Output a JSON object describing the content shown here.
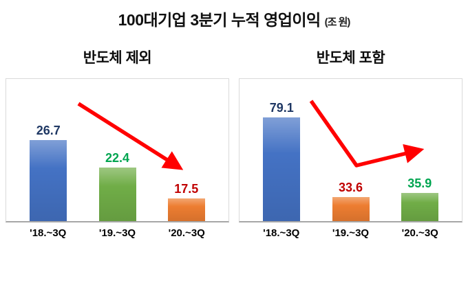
{
  "title": {
    "main": "100대기업 3분기 누적 영업이익",
    "unit": "(조 원)"
  },
  "colors": {
    "arrow": "#FF0000",
    "axis_line": "#A6A6A6",
    "plot_border": "#D9D9D9"
  },
  "chart_data": [
    {
      "type": "bar",
      "title": "반도체 제외",
      "categories": [
        "'18.~3Q",
        "'19.~3Q",
        "'20.~3Q"
      ],
      "values": [
        26.7,
        22.4,
        17.5
      ],
      "ylim": [
        14,
        36
      ],
      "bar_colors": [
        "#4472C4",
        "#70AD47",
        "#ED7D31"
      ],
      "label_colors": [
        "#1F3864",
        "#00A550",
        "#C00000"
      ],
      "legend": "none",
      "grid": false,
      "trend_arrow": "down"
    },
    {
      "type": "bar",
      "title": "반도체 포함",
      "categories": [
        "'18.~3Q",
        "'19.~3Q",
        "'20.~3Q"
      ],
      "values": [
        79.1,
        33.6,
        35.9
      ],
      "ylim": [
        20,
        100
      ],
      "bar_colors": [
        "#4472C4",
        "#ED7D31",
        "#70AD47"
      ],
      "label_colors": [
        "#1F3864",
        "#C00000",
        "#00A550"
      ],
      "legend": "none",
      "grid": false,
      "trend_arrow": "down-then-up"
    }
  ]
}
